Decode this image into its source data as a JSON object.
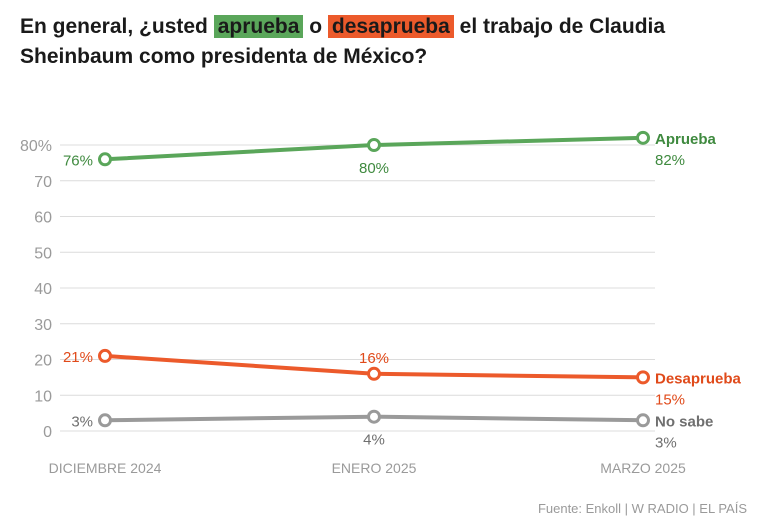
{
  "title": {
    "part1": "En general, ¿usted ",
    "highlight_approve": "aprueba",
    "part2": " o ",
    "highlight_disapprove": "desaprueba",
    "part3": " el trabajo de Claudia Sheinbaum como presidenta de México?"
  },
  "source": "Fuente: Enkoll | W RADIO | EL PAÍS",
  "colors": {
    "approve": "#5aa65a",
    "disapprove": "#ec5a2b",
    "nosabe": "#9a9a9a",
    "approve_text": "#3f8a3f",
    "disapprove_text": "#e04a1a",
    "nosabe_text": "#6f6f6f",
    "grid": "#dcdcdc",
    "axis_text": "#9a9a9a"
  },
  "chart_data": {
    "type": "line",
    "categories": [
      "DICIEMBRE 2024",
      "ENERO 2025",
      "MARZO 2025"
    ],
    "ylim": [
      0,
      80
    ],
    "yticks": [
      0,
      10,
      20,
      30,
      40,
      50,
      60,
      70,
      80
    ],
    "ytick_labels": [
      "0",
      "10",
      "20",
      "30",
      "40",
      "50",
      "60",
      "70",
      "80%"
    ],
    "grid": true,
    "series": [
      {
        "name": "Aprueba",
        "values": [
          76,
          80,
          82
        ],
        "labels": [
          "76%",
          "80%",
          "82%"
        ],
        "color_key": "approve"
      },
      {
        "name": "Desaprueba",
        "values": [
          21,
          16,
          15
        ],
        "labels": [
          "21%",
          "16%",
          "15%"
        ],
        "color_key": "disapprove"
      },
      {
        "name": "No sabe",
        "values": [
          3,
          4,
          3
        ],
        "labels": [
          "3%",
          "4%",
          "3%"
        ],
        "color_key": "nosabe"
      }
    ]
  }
}
